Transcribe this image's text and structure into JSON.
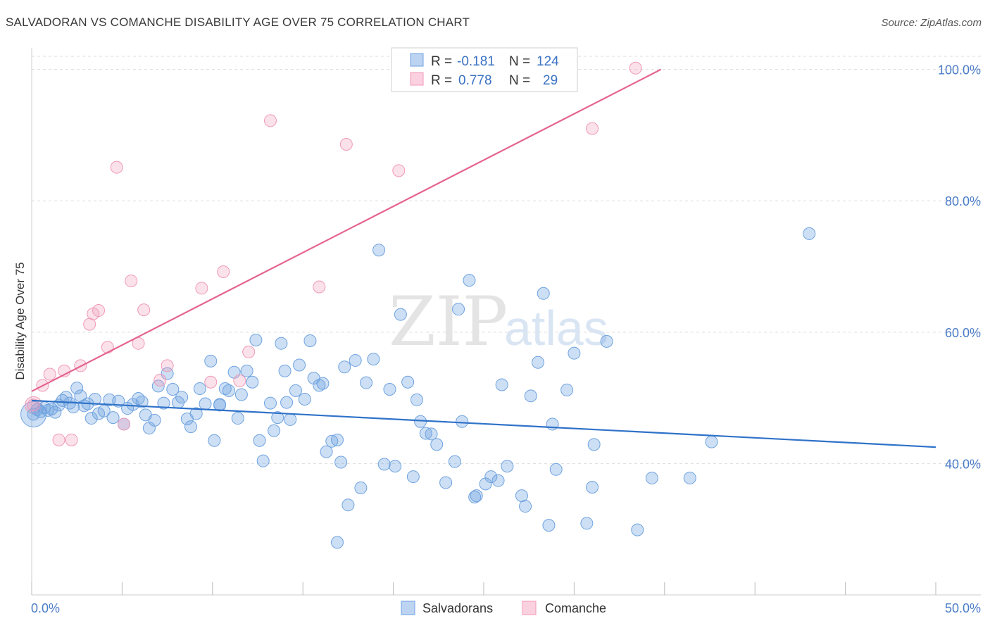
{
  "title": "SALVADORAN VS COMANCHE DISABILITY AGE OVER 75 CORRELATION CHART",
  "source": "Source: ZipAtlas.com",
  "watermark": {
    "part1": "ZIP",
    "part2": "atlas"
  },
  "legend": {
    "r_label": "R =",
    "n_label": "N =",
    "salvadorans": {
      "r": "-0.181",
      "n": "124"
    },
    "comanche": {
      "r": "0.778",
      "n": "29"
    }
  },
  "chart_data": {
    "type": "scatter",
    "title": "SALVADORAN VS COMANCHE DISABILITY AGE OVER 75 CORRELATION CHART",
    "xlabel": "",
    "ylabel": "Disability Age Over 75",
    "xlim": [
      0,
      50
    ],
    "ylim": [
      20,
      102
    ],
    "x_tick_labels": [
      "0.0%",
      "50.0%"
    ],
    "y_ticks": [
      40,
      60,
      80,
      100
    ],
    "y_tick_labels": [
      "40.0%",
      "60.0%",
      "80.0%",
      "100.0%"
    ],
    "grid": true,
    "legend_position": "top-center",
    "colors": {
      "salvadorans": "#6fa3e0",
      "comanche": "#f09ab8",
      "salvadorans_line": "#2f72c9",
      "comanche_line": "#e5648e"
    },
    "series": [
      {
        "name": "Salvadorans",
        "trend": {
          "x": [
            0,
            50
          ],
          "y": [
            49.6,
            42.5
          ]
        },
        "points": [
          [
            0.1,
            47.5
          ],
          [
            0.3,
            48.2
          ],
          [
            0.5,
            47.9
          ],
          [
            0.7,
            48.5
          ],
          [
            0.9,
            48.1
          ],
          [
            1.1,
            48.3
          ],
          [
            1.3,
            47.8
          ],
          [
            1.5,
            48.9
          ],
          [
            1.7,
            49.6
          ],
          [
            1.9,
            50.1
          ],
          [
            2.1,
            49.2
          ],
          [
            2.3,
            48.6
          ],
          [
            2.5,
            51.5
          ],
          [
            2.7,
            50.3
          ],
          [
            2.9,
            48.8
          ],
          [
            3.1,
            49.1
          ],
          [
            3.3,
            46.9
          ],
          [
            3.5,
            49.8
          ],
          [
            3.7,
            47.6
          ],
          [
            4.0,
            48.0
          ],
          [
            4.3,
            49.7
          ],
          [
            4.5,
            47.0
          ],
          [
            4.8,
            49.5
          ],
          [
            5.1,
            46.0
          ],
          [
            5.3,
            48.4
          ],
          [
            5.6,
            49.0
          ],
          [
            5.9,
            49.9
          ],
          [
            6.1,
            49.4
          ],
          [
            6.3,
            47.4
          ],
          [
            6.5,
            45.4
          ],
          [
            6.8,
            46.6
          ],
          [
            7.0,
            51.8
          ],
          [
            7.3,
            49.2
          ],
          [
            7.5,
            53.7
          ],
          [
            7.8,
            51.3
          ],
          [
            8.1,
            49.3
          ],
          [
            8.3,
            50.1
          ],
          [
            8.6,
            46.8
          ],
          [
            8.8,
            45.6
          ],
          [
            9.1,
            47.6
          ],
          [
            9.3,
            51.4
          ],
          [
            9.6,
            49.1
          ],
          [
            9.9,
            55.6
          ],
          [
            10.1,
            43.5
          ],
          [
            10.4,
            48.9
          ],
          [
            10.7,
            51.4
          ],
          [
            10.9,
            51.1
          ],
          [
            11.2,
            53.9
          ],
          [
            11.4,
            46.9
          ],
          [
            11.6,
            50.5
          ],
          [
            11.9,
            54.1
          ],
          [
            12.2,
            52.4
          ],
          [
            12.4,
            58.8
          ],
          [
            12.6,
            43.5
          ],
          [
            12.8,
            40.4
          ],
          [
            13.2,
            49.2
          ],
          [
            13.4,
            45.0
          ],
          [
            13.6,
            47.0
          ],
          [
            13.8,
            58.3
          ],
          [
            14.0,
            54.1
          ],
          [
            14.3,
            46.7
          ],
          [
            14.6,
            51.1
          ],
          [
            14.8,
            55.0
          ],
          [
            15.1,
            49.8
          ],
          [
            15.4,
            58.7
          ],
          [
            15.6,
            53.0
          ],
          [
            15.9,
            51.9
          ],
          [
            16.1,
            52.2
          ],
          [
            16.3,
            41.8
          ],
          [
            16.6,
            43.4
          ],
          [
            16.9,
            43.6
          ],
          [
            17.1,
            40.2
          ],
          [
            17.3,
            54.7
          ],
          [
            17.5,
            33.7
          ],
          [
            17.9,
            55.7
          ],
          [
            18.2,
            36.3
          ],
          [
            18.5,
            52.3
          ],
          [
            18.9,
            55.9
          ],
          [
            16.9,
            28.0
          ],
          [
            19.5,
            39.9
          ],
          [
            19.8,
            51.3
          ],
          [
            20.1,
            39.6
          ],
          [
            20.4,
            62.7
          ],
          [
            20.8,
            52.4
          ],
          [
            21.1,
            38.0
          ],
          [
            21.3,
            49.7
          ],
          [
            21.5,
            46.4
          ],
          [
            21.8,
            44.6
          ],
          [
            22.1,
            44.5
          ],
          [
            22.4,
            42.9
          ],
          [
            22.9,
            37.1
          ],
          [
            23.4,
            40.3
          ],
          [
            23.6,
            63.5
          ],
          [
            23.8,
            46.4
          ],
          [
            24.2,
            67.9
          ],
          [
            24.5,
            34.9
          ],
          [
            24.6,
            35.1
          ],
          [
            25.1,
            36.9
          ],
          [
            25.4,
            38.0
          ],
          [
            25.8,
            37.4
          ],
          [
            26.0,
            52.0
          ],
          [
            26.3,
            39.6
          ],
          [
            27.1,
            35.1
          ],
          [
            27.3,
            33.5
          ],
          [
            27.6,
            50.3
          ],
          [
            28.0,
            55.4
          ],
          [
            28.3,
            65.9
          ],
          [
            28.6,
            30.6
          ],
          [
            28.8,
            46.0
          ],
          [
            29.0,
            39.1
          ],
          [
            29.6,
            51.2
          ],
          [
            30.0,
            56.8
          ],
          [
            30.7,
            30.9
          ],
          [
            31.1,
            42.9
          ],
          [
            31.8,
            58.6
          ],
          [
            31.0,
            36.4
          ],
          [
            33.5,
            29.9
          ],
          [
            34.3,
            37.8
          ],
          [
            36.4,
            37.8
          ],
          [
            37.6,
            43.3
          ],
          [
            43.0,
            75.0
          ],
          [
            19.2,
            72.5
          ],
          [
            14.1,
            49.3
          ],
          [
            10.4,
            49.0
          ]
        ]
      },
      {
        "name": "Comanche",
        "trend": {
          "x": [
            0,
            34.8
          ],
          "y": [
            51.0,
            100.0
          ]
        },
        "points": [
          [
            0.1,
            48.9
          ],
          [
            0.6,
            51.9
          ],
          [
            1.0,
            53.6
          ],
          [
            1.5,
            43.6
          ],
          [
            1.8,
            54.1
          ],
          [
            2.2,
            43.6
          ],
          [
            2.7,
            54.9
          ],
          [
            3.2,
            61.2
          ],
          [
            3.4,
            62.8
          ],
          [
            3.7,
            63.3
          ],
          [
            4.2,
            57.7
          ],
          [
            4.7,
            85.1
          ],
          [
            5.1,
            46.0
          ],
          [
            5.5,
            67.8
          ],
          [
            5.9,
            58.3
          ],
          [
            6.2,
            63.4
          ],
          [
            7.1,
            52.7
          ],
          [
            7.5,
            54.9
          ],
          [
            9.4,
            66.7
          ],
          [
            9.9,
            52.4
          ],
          [
            10.6,
            69.2
          ],
          [
            11.5,
            52.6
          ],
          [
            12.0,
            57.0
          ],
          [
            13.2,
            92.2
          ],
          [
            15.9,
            66.9
          ],
          [
            17.4,
            88.6
          ],
          [
            20.3,
            84.6
          ],
          [
            31.0,
            91.0
          ],
          [
            33.4,
            100.2
          ]
        ]
      }
    ]
  }
}
